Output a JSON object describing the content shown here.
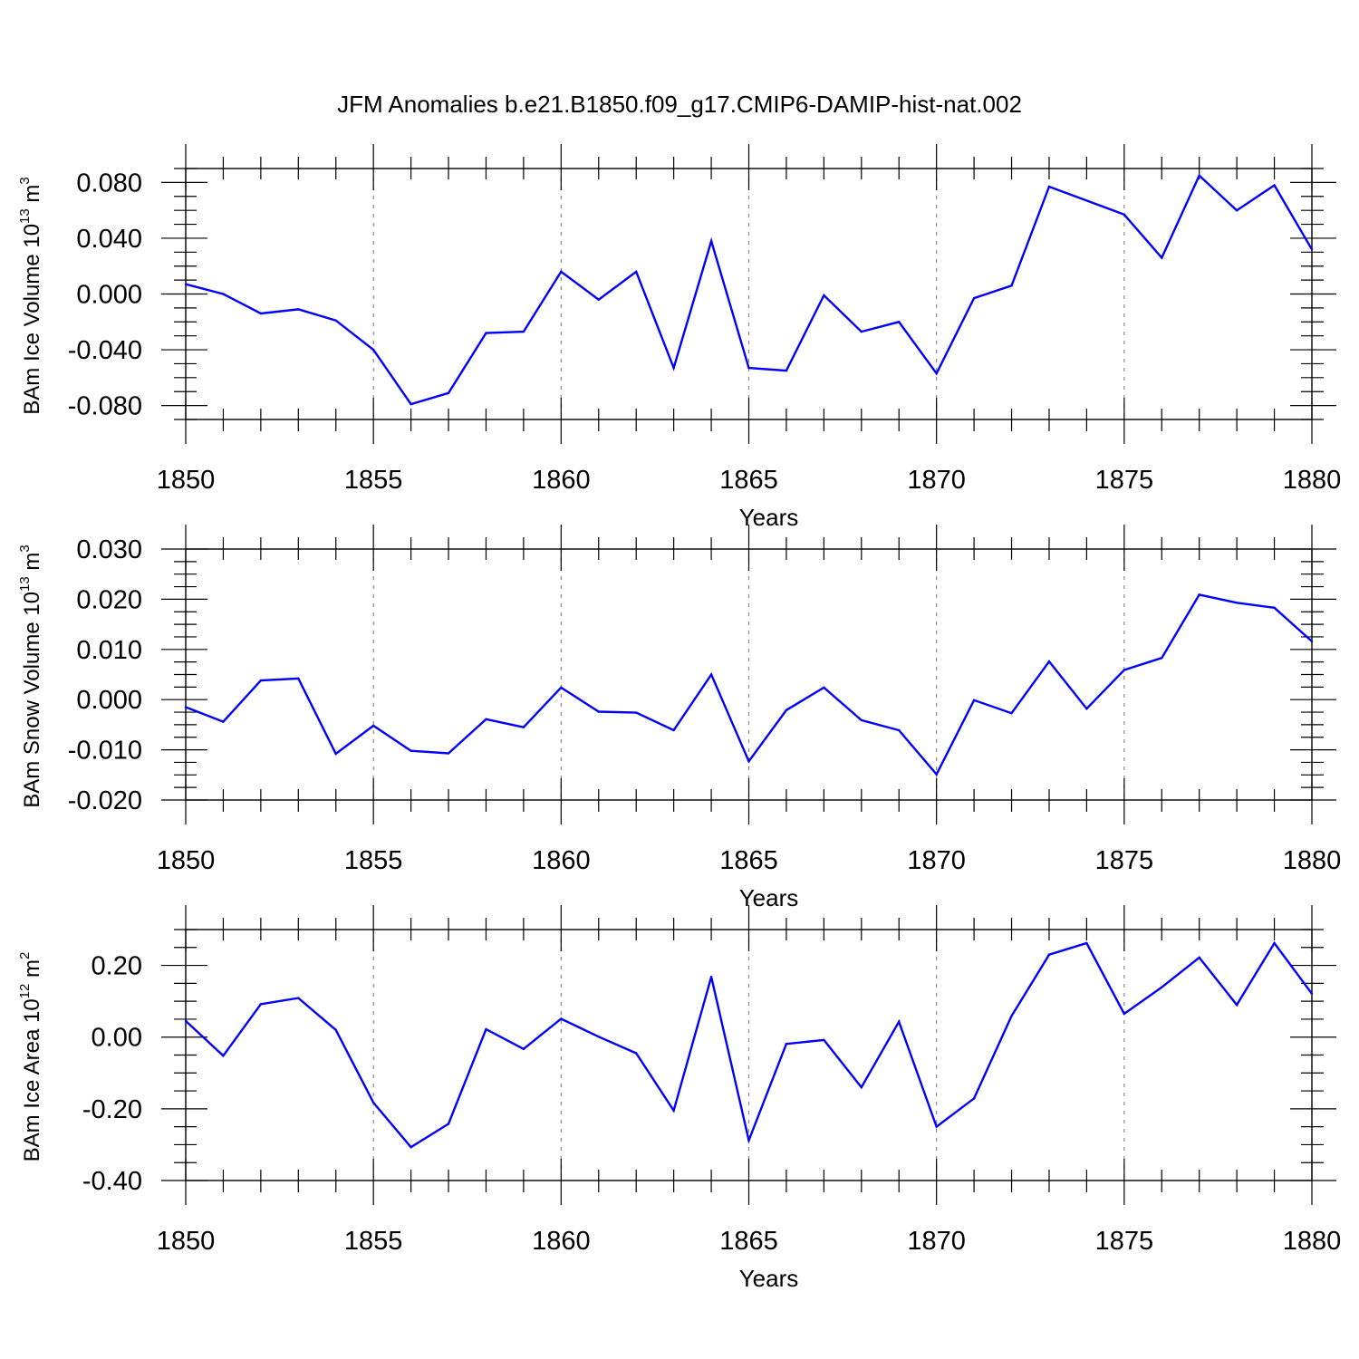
{
  "colors": {
    "line": "#0000ff",
    "axis": "#000000",
    "grid": "#888888"
  },
  "chart_data": [
    {
      "type": "line",
      "title": "JFM Anomalies b.e21.B1850.f09_g17.CMIP6-DAMIP-hist-nat.002",
      "ylabel": {
        "main": "BAm Ice Volume 10",
        "exp": "13",
        "unit": " m",
        "unit_exp": "3"
      },
      "xlabel": "Years",
      "xlim": [
        1850,
        1880
      ],
      "ylim": [
        -0.09,
        0.09
      ],
      "xticks": [
        1850,
        1855,
        1860,
        1865,
        1870,
        1875,
        1880
      ],
      "xtick_labels": [
        "1850",
        "1855",
        "1860",
        "1865",
        "1870",
        "1875",
        "1880"
      ],
      "yticks": [
        -0.08,
        -0.04,
        0.0,
        0.04,
        0.08
      ],
      "ytick_labels": [
        "-0.080",
        "-0.040",
        "0.000",
        "0.040",
        "0.080"
      ],
      "grid": "vertical dashed at major x ticks",
      "x": [
        1850,
        1851,
        1852,
        1853,
        1854,
        1855,
        1856,
        1857,
        1858,
        1859,
        1860,
        1861,
        1862,
        1863,
        1864,
        1865,
        1866,
        1867,
        1868,
        1869,
        1870,
        1871,
        1872,
        1873,
        1874,
        1875,
        1876,
        1877,
        1878,
        1879,
        1880
      ],
      "series": [
        {
          "name": "BAm Ice Volume",
          "values": [
            0.007,
            0.0,
            -0.014,
            -0.011,
            -0.019,
            -0.04,
            -0.079,
            -0.071,
            -0.028,
            -0.027,
            0.016,
            -0.004,
            0.016,
            -0.053,
            0.038,
            -0.053,
            -0.055,
            -0.001,
            -0.027,
            -0.02,
            -0.057,
            -0.003,
            0.006,
            0.077,
            0.067,
            0.057,
            0.026,
            0.085,
            0.06,
            0.078,
            0.032
          ]
        }
      ]
    },
    {
      "type": "line",
      "title": "",
      "ylabel": {
        "main": "BAm Snow Volume 10",
        "exp": "13",
        "unit": " m",
        "unit_exp": "3"
      },
      "xlabel": "Years",
      "xlim": [
        1850,
        1880
      ],
      "ylim": [
        -0.02,
        0.03
      ],
      "xticks": [
        1850,
        1855,
        1860,
        1865,
        1870,
        1875,
        1880
      ],
      "xtick_labels": [
        "1850",
        "1855",
        "1860",
        "1865",
        "1870",
        "1875",
        "1880"
      ],
      "yticks": [
        -0.02,
        -0.01,
        0.0,
        0.01,
        0.02,
        0.03
      ],
      "ytick_labels": [
        "-0.020",
        "-0.010",
        "0.000",
        "0.010",
        "0.020",
        "0.030"
      ],
      "grid": "vertical dashed at major x ticks",
      "x": [
        1850,
        1851,
        1852,
        1853,
        1854,
        1855,
        1856,
        1857,
        1858,
        1859,
        1860,
        1861,
        1862,
        1863,
        1864,
        1865,
        1866,
        1867,
        1868,
        1869,
        1870,
        1871,
        1872,
        1873,
        1874,
        1875,
        1876,
        1877,
        1878,
        1879,
        1880
      ],
      "series": [
        {
          "name": "BAm Snow Volume",
          "values": [
            -0.0015,
            -0.0044,
            0.0038,
            0.0042,
            -0.0108,
            -0.0052,
            -0.0102,
            -0.0107,
            -0.0039,
            -0.0055,
            0.0024,
            -0.0024,
            -0.0026,
            -0.0061,
            0.005,
            -0.0123,
            -0.0021,
            0.0024,
            -0.0041,
            -0.0061,
            -0.0149,
            -0.0001,
            -0.0027,
            0.0076,
            -0.0018,
            0.0059,
            0.0083,
            0.0209,
            0.0193,
            0.0183,
            0.0116
          ]
        }
      ]
    },
    {
      "type": "line",
      "title": "",
      "ylabel": {
        "main": "BAm Ice Area 10",
        "exp": "12",
        "unit": " m",
        "unit_exp": "2"
      },
      "xlabel": "Years",
      "xlim": [
        1850,
        1880
      ],
      "ylim": [
        -0.4,
        0.3
      ],
      "xticks": [
        1850,
        1855,
        1860,
        1865,
        1870,
        1875,
        1880
      ],
      "xtick_labels": [
        "1850",
        "1855",
        "1860",
        "1865",
        "1870",
        "1875",
        "1880"
      ],
      "yticks": [
        -0.4,
        -0.2,
        0.0,
        0.2
      ],
      "ytick_labels": [
        "-0.40",
        "-0.20",
        "0.00",
        "0.20"
      ],
      "grid": "vertical dashed at major x ticks",
      "x": [
        1850,
        1851,
        1852,
        1853,
        1854,
        1855,
        1856,
        1857,
        1858,
        1859,
        1860,
        1861,
        1862,
        1863,
        1864,
        1865,
        1866,
        1867,
        1868,
        1869,
        1870,
        1871,
        1872,
        1873,
        1874,
        1875,
        1876,
        1877,
        1878,
        1879,
        1880
      ],
      "series": [
        {
          "name": "BAm Ice Area",
          "values": [
            0.045,
            -0.052,
            0.092,
            0.109,
            0.02,
            -0.183,
            -0.307,
            -0.242,
            0.022,
            -0.033,
            0.051,
            0.001,
            -0.045,
            -0.205,
            0.168,
            -0.288,
            -0.019,
            -0.008,
            -0.14,
            0.043,
            -0.25,
            -0.171,
            0.059,
            0.23,
            0.262,
            0.065,
            0.139,
            0.222,
            0.09,
            0.262,
            0.121
          ]
        }
      ]
    }
  ]
}
